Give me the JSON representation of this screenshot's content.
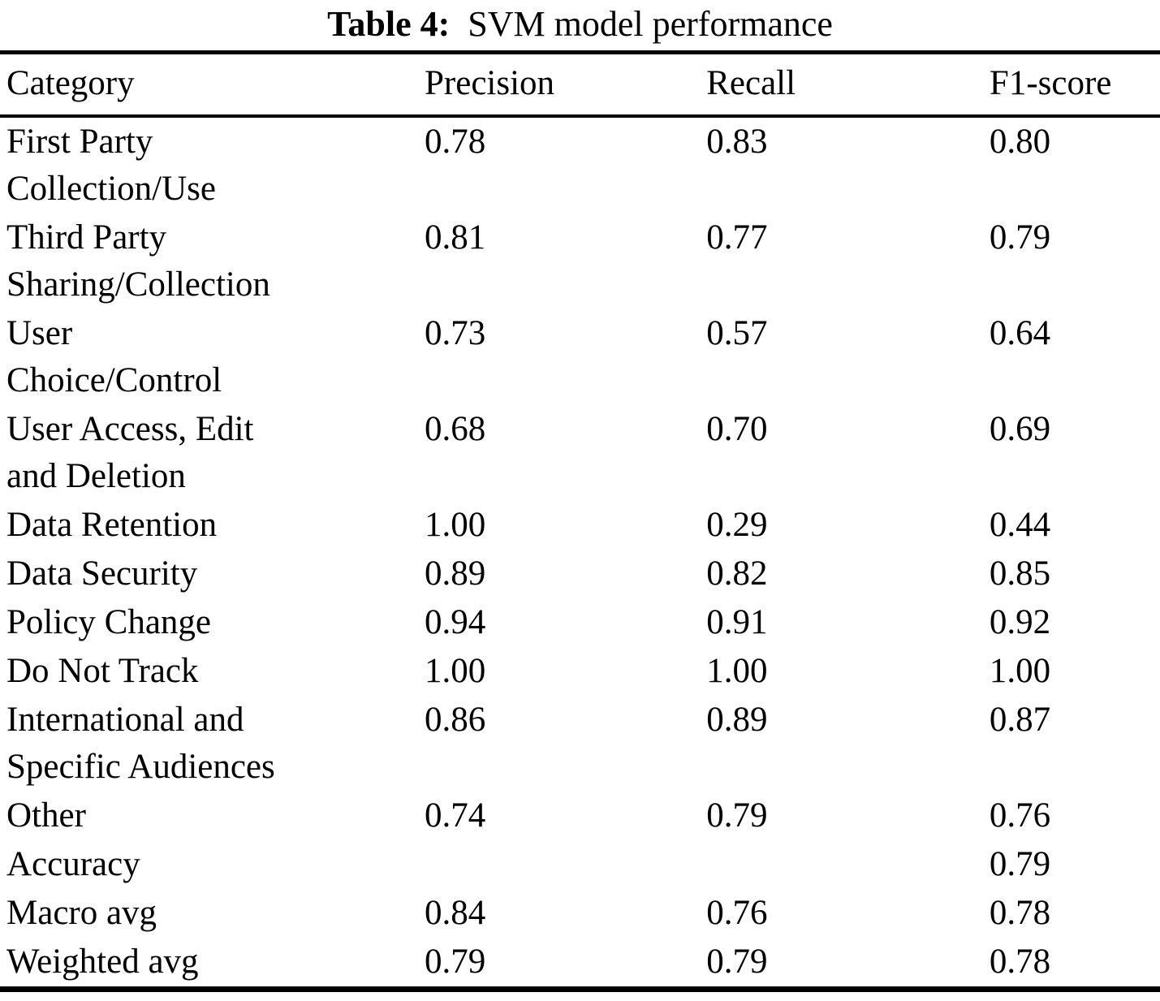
{
  "caption": {
    "label": "Table 4:",
    "text": "SVM model performance"
  },
  "table": {
    "columns": [
      "Category",
      "Precision",
      "Recall",
      "F1-score"
    ],
    "rows": [
      {
        "category": "First Party\nCollection/Use",
        "precision": "0.78",
        "recall": "0.83",
        "f1": "0.80"
      },
      {
        "category": "Third Party\nSharing/Collection",
        "precision": "0.81",
        "recall": "0.77",
        "f1": "0.79"
      },
      {
        "category": "User\nChoice/Control",
        "precision": "0.73",
        "recall": "0.57",
        "f1": "0.64"
      },
      {
        "category": "User Access, Edit\nand Deletion",
        "precision": "0.68",
        "recall": "0.70",
        "f1": "0.69"
      },
      {
        "category": "Data Retention",
        "precision": "1.00",
        "recall": "0.29",
        "f1": "0.44"
      },
      {
        "category": "Data Security",
        "precision": "0.89",
        "recall": "0.82",
        "f1": "0.85"
      },
      {
        "category": "Policy Change",
        "precision": "0.94",
        "recall": "0.91",
        "f1": "0.92"
      },
      {
        "category": "Do Not Track",
        "precision": "1.00",
        "recall": "1.00",
        "f1": "1.00"
      },
      {
        "category": "International and\nSpecific Audiences",
        "precision": "0.86",
        "recall": "0.89",
        "f1": "0.87"
      },
      {
        "category": "Other",
        "precision": "0.74",
        "recall": "0.79",
        "f1": "0.76"
      },
      {
        "category": "Accuracy",
        "precision": "",
        "recall": "",
        "f1": "0.79"
      },
      {
        "category": "Macro avg",
        "precision": "0.84",
        "recall": "0.76",
        "f1": "0.78"
      },
      {
        "category": "Weighted avg",
        "precision": "0.79",
        "recall": "0.79",
        "f1": "0.78"
      }
    ]
  }
}
